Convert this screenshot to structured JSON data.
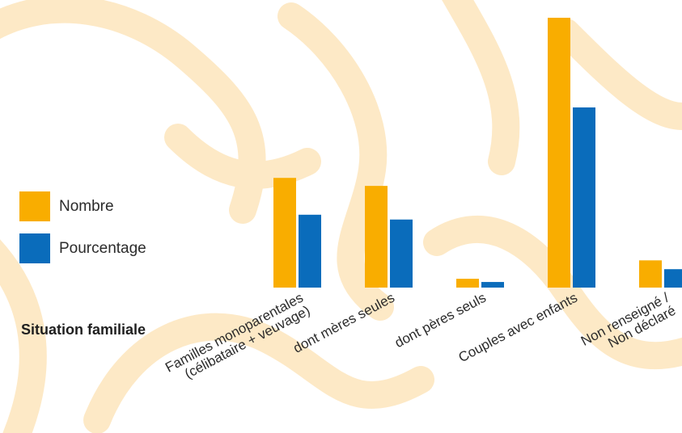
{
  "colors": {
    "background": "#ffffff",
    "decor": "#fde9c6",
    "nombre": "#f9ad00",
    "pourcentage": "#0a6cbb"
  },
  "legend": [
    {
      "label": "Nombre",
      "color": "#f9ad00"
    },
    {
      "label": "Pourcentage",
      "color": "#0a6cbb"
    }
  ],
  "xlabel": "Situation familiale",
  "chart_data": {
    "type": "bar",
    "categories": [
      [
        "Familles monoparentales",
        "(célibataire + veuvage)"
      ],
      [
        "dont mères seules"
      ],
      [
        "dont pères seuls"
      ],
      [
        "Couples avec enfants"
      ],
      [
        "Non renseigné /",
        "Non déclaré"
      ]
    ],
    "series": [
      {
        "name": "Nombre",
        "values": [
          137,
          127,
          11,
          337,
          34
        ]
      },
      {
        "name": "Pourcentage",
        "values": [
          91,
          85,
          7,
          225,
          23
        ]
      }
    ],
    "xlabel": "Situation familiale",
    "ylabel": "",
    "ylim": [
      0,
      340
    ],
    "grid": false,
    "legend_position": "left"
  }
}
